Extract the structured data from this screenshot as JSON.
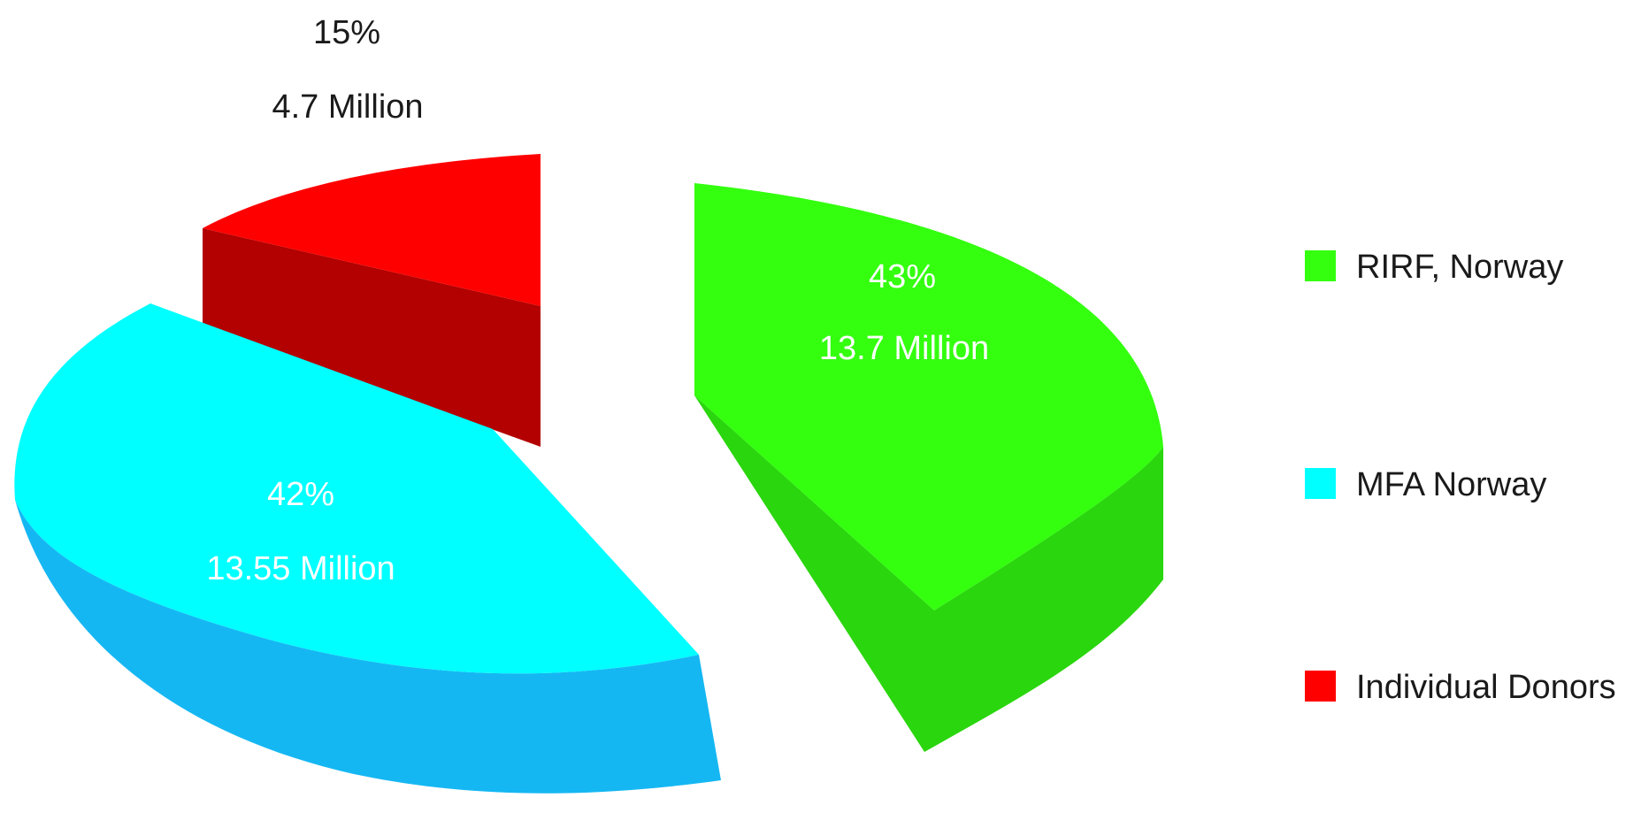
{
  "chart_data": {
    "type": "pie",
    "style": "3d-exploded",
    "legend_position": "right",
    "slices": [
      {
        "label": "RIRF, Norway",
        "percent": "43%",
        "amount": "13.7 Million",
        "value": 13.7,
        "color": "#33ff0f",
        "side_color": "#2ad60d"
      },
      {
        "label": "MFA Norway",
        "percent": "42%",
        "amount": "13.55 Million",
        "value": 13.55,
        "color": "#00ffff",
        "side_color": "#15b7f3"
      },
      {
        "label": "Individual Donors",
        "percent": "15%",
        "amount": "4.7 Million",
        "value": 4.7,
        "color": "#ff0000",
        "side_color": "#b30000"
      }
    ]
  }
}
